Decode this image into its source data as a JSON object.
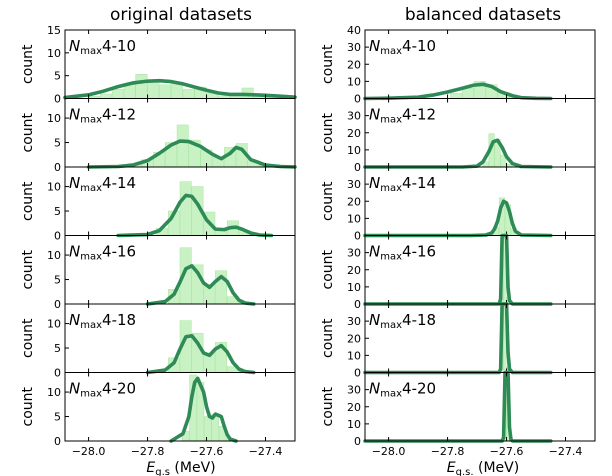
{
  "titles": {
    "left": "original datasets",
    "right": "balanced datasets"
  },
  "xlabel": {
    "main": "E",
    "sub_left": "g.s",
    "sub_right": "g.s.",
    "unit": "(MeV)"
  },
  "colors": {
    "curve": "#2e8b57",
    "hist": "#c9f2c4",
    "hist_edge": "#a8e6a0",
    "axis": "#000000"
  },
  "chart_data": [
    {
      "type": "area",
      "panel": "original datasets",
      "xlim": [
        -28.08,
        -27.3
      ],
      "xticks": [
        -28.0,
        -27.8,
        -27.6,
        -27.4
      ],
      "xtick_labels": [
        "−28.0",
        "−27.8",
        "−27.6",
        "−27.4"
      ],
      "ylabel": "count",
      "rows": [
        {
          "name": "4-10",
          "ylim": [
            0,
            15
          ],
          "yticks": [
            0,
            5,
            10,
            15
          ],
          "curve": {
            "x": [
              -28.08,
              -28.0,
              -27.95,
              -27.9,
              -27.85,
              -27.8,
              -27.76,
              -27.72,
              -27.68,
              -27.64,
              -27.6,
              -27.56,
              -27.52,
              -27.48,
              -27.44,
              -27.4,
              -27.35,
              -27.3
            ],
            "y": [
              0.2,
              0.8,
              1.6,
              2.6,
              3.4,
              3.8,
              3.9,
              3.7,
              3.2,
              2.5,
              1.8,
              1.2,
              0.9,
              0.9,
              0.8,
              0.7,
              0.5,
              0.3
            ]
          },
          "bars": {
            "x": [
              -27.98,
              -27.94,
              -27.9,
              -27.86,
              -27.82,
              -27.78,
              -27.74,
              -27.7,
              -27.66,
              -27.62,
              -27.58,
              -27.54,
              -27.5,
              -27.46,
              -27.42,
              -27.38
            ],
            "y": [
              0.5,
              1.0,
              2.0,
              3.0,
              5.3,
              4.0,
              3.0,
              3.6,
              2.0,
              2.5,
              1.2,
              0.6,
              1.0,
              2.3,
              1.0,
              0.3
            ]
          }
        },
        {
          "name": "4-12",
          "ylim": [
            0,
            14
          ],
          "yticks": [
            0,
            5,
            10
          ],
          "curve": {
            "x": [
              -28.0,
              -27.9,
              -27.85,
              -27.8,
              -27.76,
              -27.72,
              -27.69,
              -27.66,
              -27.62,
              -27.58,
              -27.55,
              -27.52,
              -27.5,
              -27.48,
              -27.45,
              -27.4,
              -27.35,
              -27.3
            ],
            "y": [
              0,
              0.1,
              0.4,
              1.3,
              2.8,
              4.5,
              5.3,
              5.2,
              4.2,
              2.6,
              1.7,
              2.8,
              4.0,
              3.6,
              1.5,
              0.4,
              0.1,
              0
            ]
          },
          "bars": {
            "x": [
              -27.84,
              -27.8,
              -27.76,
              -27.72,
              -27.68,
              -27.64,
              -27.6,
              -27.56,
              -27.52,
              -27.48,
              -27.44,
              -27.4
            ],
            "y": [
              0.6,
              1.5,
              3.0,
              5.0,
              8.6,
              5.5,
              3.5,
              2.0,
              4.0,
              4.8,
              1.3,
              0.4
            ]
          }
        },
        {
          "name": "4-14",
          "ylim": [
            0,
            14
          ],
          "yticks": [
            0,
            5,
            10
          ],
          "curve": {
            "x": [
              -27.9,
              -27.8,
              -27.76,
              -27.72,
              -27.69,
              -27.67,
              -27.65,
              -27.63,
              -27.6,
              -27.57,
              -27.54,
              -27.52,
              -27.5,
              -27.48,
              -27.45,
              -27.42,
              -27.38
            ],
            "y": [
              0,
              0.2,
              1.0,
              3.5,
              6.8,
              8.2,
              8.0,
              6.4,
              3.2,
              1.3,
              1.2,
              1.6,
              1.7,
              1.3,
              0.5,
              0.1,
              0
            ]
          },
          "bars": {
            "x": [
              -27.75,
              -27.71,
              -27.67,
              -27.63,
              -27.59,
              -27.55,
              -27.51,
              -27.47,
              -27.43
            ],
            "y": [
              1.5,
              5.0,
              11.0,
              10.0,
              4.8,
              1.5,
              3.0,
              1.0,
              0.3
            ]
          }
        },
        {
          "name": "4-16",
          "ylim": [
            0,
            14
          ],
          "yticks": [
            0,
            5,
            10
          ],
          "curve": {
            "x": [
              -27.8,
              -27.74,
              -27.71,
              -27.69,
              -27.67,
              -27.65,
              -27.63,
              -27.61,
              -27.59,
              -27.57,
              -27.55,
              -27.53,
              -27.51,
              -27.49,
              -27.47,
              -27.44
            ],
            "y": [
              0,
              0.5,
              2.0,
              4.5,
              7.2,
              7.8,
              6.4,
              4.3,
              3.4,
              4.6,
              5.6,
              4.6,
              2.3,
              0.8,
              0.2,
              0
            ]
          },
          "bars": {
            "x": [
              -27.71,
              -27.67,
              -27.63,
              -27.59,
              -27.55,
              -27.51,
              -27.47
            ],
            "y": [
              3.0,
              11.5,
              8.0,
              4.0,
              6.8,
              1.5,
              0.3
            ]
          }
        },
        {
          "name": "4-18",
          "ylim": [
            0,
            14
          ],
          "yticks": [
            0,
            5,
            10
          ],
          "curve": {
            "x": [
              -27.8,
              -27.74,
              -27.71,
              -27.69,
              -27.67,
              -27.65,
              -27.63,
              -27.61,
              -27.59,
              -27.57,
              -27.55,
              -27.53,
              -27.51,
              -27.49,
              -27.47,
              -27.44
            ],
            "y": [
              0,
              0.5,
              2.0,
              4.8,
              7.3,
              7.5,
              6.0,
              4.0,
              3.5,
              4.8,
              5.5,
              4.2,
              2.0,
              0.7,
              0.2,
              0
            ]
          },
          "bars": {
            "x": [
              -27.71,
              -27.67,
              -27.63,
              -27.59,
              -27.55,
              -27.51,
              -27.47
            ],
            "y": [
              3.0,
              10.6,
              8.0,
              4.0,
              6.2,
              1.2,
              0.3
            ]
          }
        },
        {
          "name": "4-20",
          "ylim": [
            0,
            14
          ],
          "yticks": [
            0,
            5,
            10
          ],
          "curve": {
            "x": [
              -27.72,
              -27.68,
              -27.66,
              -27.65,
              -27.64,
              -27.63,
              -27.61,
              -27.6,
              -27.59,
              -27.58,
              -27.57,
              -27.55,
              -27.54,
              -27.53,
              -27.52,
              -27.5
            ],
            "y": [
              0,
              1.5,
              5.0,
              9.0,
              12.0,
              12.8,
              10.0,
              7.0,
              5.0,
              4.7,
              5.5,
              5.0,
              3.0,
              1.3,
              0.4,
              0
            ]
          },
          "bars": {
            "x": [
              -27.67,
              -27.645,
              -27.62,
              -27.595,
              -27.57,
              -27.545,
              -27.52
            ],
            "y": [
              2.0,
              13.5,
              12.0,
              5.0,
              5.5,
              3.0,
              0.5
            ]
          }
        }
      ]
    },
    {
      "type": "area",
      "panel": "balanced datasets",
      "xlim": [
        -28.08,
        -27.3
      ],
      "xticks": [
        -28.0,
        -27.8,
        -27.6,
        -27.4
      ],
      "xtick_labels": [
        "−28.0",
        "−27.8",
        "−27.6",
        "−27.4"
      ],
      "ylabel": "count",
      "rows": [
        {
          "name": "4-10",
          "ylim": [
            0,
            40
          ],
          "yticks": [
            0,
            10,
            20,
            30,
            40
          ],
          "curve": {
            "x": [
              -28.08,
              -28.0,
              -27.9,
              -27.85,
              -27.8,
              -27.75,
              -27.71,
              -27.68,
              -27.65,
              -27.62,
              -27.58,
              -27.55,
              -27.5,
              -27.45
            ],
            "y": [
              0,
              0.2,
              0.8,
              2.0,
              3.8,
              6.0,
              7.8,
              8.3,
              7.0,
              4.0,
              1.6,
              0.5,
              0.1,
              0
            ]
          },
          "bars": {
            "x": [
              -27.77,
              -27.73,
              -27.69,
              -27.65,
              -27.61,
              -27.57
            ],
            "y": [
              3.0,
              6.0,
              10.0,
              8.0,
              3.5,
              1.0
            ]
          }
        },
        {
          "name": "4-12",
          "ylim": [
            0,
            40
          ],
          "yticks": [
            0,
            10,
            20,
            30
          ],
          "curve": {
            "x": [
              -28.08,
              -27.75,
              -27.7,
              -27.68,
              -27.66,
              -27.645,
              -27.63,
              -27.615,
              -27.6,
              -27.58,
              -27.55,
              -27.45
            ],
            "y": [
              0,
              0,
              0.5,
              3.0,
              9.0,
              14.8,
              15.6,
              11.5,
              6.0,
              2.0,
              0.3,
              0
            ]
          },
          "bars": {
            "x": [
              -27.67,
              -27.65,
              -27.63,
              -27.61,
              -27.59
            ],
            "y": [
              3.0,
              19.5,
              16.0,
              7.0,
              1.5
            ]
          }
        },
        {
          "name": "4-14",
          "ylim": [
            0,
            40
          ],
          "yticks": [
            0,
            10,
            20,
            30
          ],
          "curve": {
            "x": [
              -28.08,
              -27.72,
              -27.67,
              -27.65,
              -27.64,
              -27.63,
              -27.62,
              -27.61,
              -27.6,
              -27.59,
              -27.58,
              -27.57,
              -27.55,
              -27.45
            ],
            "y": [
              0,
              0,
              0.3,
              1.5,
              4.0,
              8.5,
              16.0,
              20.0,
              19.0,
              14.0,
              7.0,
              2.5,
              0.3,
              0
            ]
          },
          "bars": {
            "x": [
              -27.635,
              -27.615,
              -27.595,
              -27.575
            ],
            "y": [
              5.0,
              22.0,
              18.0,
              4.0
            ]
          }
        },
        {
          "name": "4-16",
          "ylim": [
            0,
            40
          ],
          "yticks": [
            0,
            10,
            20,
            30
          ],
          "curve": {
            "x": [
              -28.08,
              -27.7,
              -27.625,
              -27.62,
              -27.615,
              -27.61,
              -27.605,
              -27.6,
              -27.595,
              -27.59,
              -27.58,
              -27.45
            ],
            "y": [
              0,
              0,
              0,
              3,
              40,
              40,
              40,
              40,
              10,
              2,
              0,
              0
            ]
          },
          "bars": {
            "x": [
              -27.615,
              -27.605,
              -27.595
            ],
            "y": [
              36.0,
              40.0,
              4.0
            ]
          }
        },
        {
          "name": "4-18",
          "ylim": [
            0,
            40
          ],
          "yticks": [
            0,
            10,
            20,
            30
          ],
          "curve": {
            "x": [
              -28.08,
              -27.7,
              -27.625,
              -27.62,
              -27.615,
              -27.61,
              -27.605,
              -27.6,
              -27.595,
              -27.59,
              -27.58,
              -27.45
            ],
            "y": [
              0,
              0,
              0,
              2,
              40,
              40,
              40,
              40,
              12,
              2,
              0,
              0
            ]
          },
          "bars": {
            "x": [
              -27.615,
              -27.605,
              -27.595
            ],
            "y": [
              38.0,
              40.0,
              3.0
            ]
          }
        },
        {
          "name": "4-20",
          "ylim": [
            0,
            40
          ],
          "yticks": [
            0,
            10,
            20,
            30
          ],
          "curve": {
            "x": [
              -28.08,
              -27.7,
              -27.615,
              -27.61,
              -27.605,
              -27.6,
              -27.595,
              -27.59,
              -27.585,
              -27.58,
              -27.45
            ],
            "y": [
              0,
              0,
              0,
              2,
              40,
              40,
              40,
              8,
              1,
              0,
              0
            ]
          },
          "bars": {
            "x": [
              -27.605,
              -27.595
            ],
            "y": [
              40.0,
              36.0
            ]
          }
        }
      ]
    }
  ]
}
